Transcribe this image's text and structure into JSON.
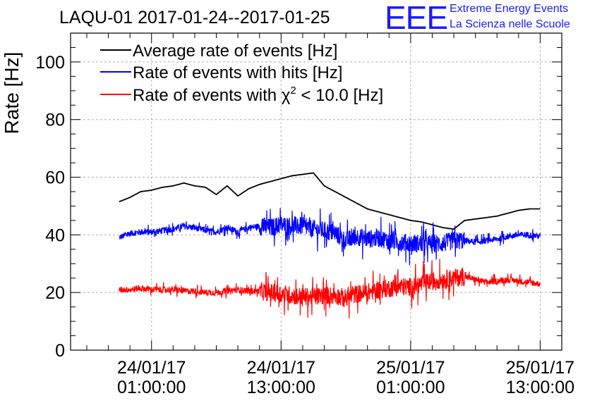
{
  "chart_data": {
    "type": "line",
    "title": "LAQU-01 2017-01-24--2017-01-25",
    "ylabel": "Rate [Hz]",
    "xlabel": "",
    "ylim": [
      0,
      110
    ],
    "y_ticks": [
      0,
      20,
      40,
      60,
      80,
      100
    ],
    "x_range_hours": [
      -7.5,
      38
    ],
    "x_ticks": [
      {
        "t": 0,
        "line1": "24/01/17",
        "line2": "01:00:00"
      },
      {
        "t": 12,
        "line1": "24/01/17",
        "line2": "13:00:00"
      },
      {
        "t": 24,
        "line1": "25/01/17",
        "line2": "01:00:00"
      },
      {
        "t": 36,
        "line1": "25/01/17",
        "line2": "13:00:00"
      }
    ],
    "grid": true,
    "legend_position": "top-left",
    "series": [
      {
        "name": "Average rate of events [Hz]",
        "color": "#000000",
        "noise": 0,
        "x": [
          -3.0,
          -2.0,
          -1.0,
          0.0,
          1.0,
          2.0,
          3.0,
          4.0,
          5.0,
          6.0,
          7.0,
          8.0,
          9.0,
          10.0,
          11.0,
          12.0,
          13.0,
          14.0,
          15.0,
          16.0,
          17.0,
          18.0,
          19.0,
          20.0,
          21.0,
          22.0,
          23.0,
          24.0,
          25.0,
          26.0,
          27.0,
          28.0,
          29.0,
          30.0,
          31.0,
          32.0,
          33.0,
          34.0,
          35.0,
          36.0
        ],
        "y": [
          51.5,
          53,
          55,
          55.5,
          56.5,
          57,
          58,
          57,
          56.5,
          54,
          57,
          53.5,
          56,
          57.5,
          58.5,
          59.5,
          60.5,
          61,
          61.5,
          57,
          55,
          53,
          51,
          49,
          48,
          47,
          46,
          45,
          44.5,
          43.5,
          42.5,
          42,
          45,
          45.5,
          46,
          46.5,
          47.5,
          48.5,
          49,
          49
        ]
      },
      {
        "name": "Rate of events with hits [Hz]",
        "color": "#0000ff",
        "noise": 1,
        "x": [
          -3.0,
          -2.0,
          -1.0,
          0.0,
          1.0,
          2.0,
          3.0,
          4.0,
          5.0,
          6.0,
          7.0,
          8.0,
          9.0,
          10.0,
          11.0,
          12.0,
          13.0,
          14.0,
          15.0,
          16.0,
          17.0,
          18.0,
          19.0,
          20.0,
          21.0,
          22.0,
          23.0,
          24.0,
          25.0,
          26.0,
          27.0,
          28.0,
          29.0,
          30.0,
          31.0,
          32.0,
          33.0,
          34.0,
          35.0,
          36.0
        ],
        "y": [
          39,
          40.5,
          41,
          41,
          41.5,
          42,
          43,
          42.5,
          41.5,
          41,
          42.5,
          41,
          42.5,
          43,
          42.5,
          43.5,
          43,
          43,
          42,
          41.5,
          40.5,
          38,
          39.5,
          38.5,
          39,
          38,
          37.5,
          37,
          37,
          37,
          37,
          38,
          38,
          37.5,
          38,
          38.5,
          39.5,
          40,
          40,
          39.5
        ]
      },
      {
        "name": "Rate of events with χ² < 10.0 [Hz]",
        "color": "#ff0000",
        "noise": 1,
        "x": [
          -3.0,
          -2.0,
          -1.0,
          0.0,
          1.0,
          2.0,
          3.0,
          4.0,
          5.0,
          6.0,
          7.0,
          8.0,
          9.0,
          10.0,
          11.0,
          12.0,
          13.0,
          14.0,
          15.0,
          16.0,
          17.0,
          18.0,
          19.0,
          20.0,
          21.0,
          22.0,
          23.0,
          24.0,
          25.0,
          26.0,
          27.0,
          28.0,
          29.0,
          30.0,
          31.0,
          32.0,
          33.0,
          34.0,
          35.0,
          36.0
        ],
        "y": [
          21,
          21,
          21.5,
          21,
          21,
          21,
          20.5,
          20.5,
          20,
          20,
          20.5,
          21,
          20.5,
          20.5,
          20,
          19.5,
          19,
          18.5,
          18.5,
          19,
          19,
          18,
          19.5,
          20,
          21,
          21.5,
          22,
          22,
          23,
          24,
          24.5,
          25,
          25.5,
          24.5,
          23.5,
          24,
          24.5,
          24,
          23.5,
          23
        ]
      }
    ],
    "legend": {
      "item1": "Average rate of events [Hz]",
      "item2": "Rate of events with hits [Hz]",
      "item3_pre": "Rate of events with χ",
      "item3_sup": "2",
      "item3_post": " < 10.0 [Hz]"
    }
  },
  "logo": {
    "letters": "EEE",
    "line1": "Extreme Energy Events",
    "line2": "La Scienza nelle Scuole",
    "color": "#1a1aff"
  }
}
